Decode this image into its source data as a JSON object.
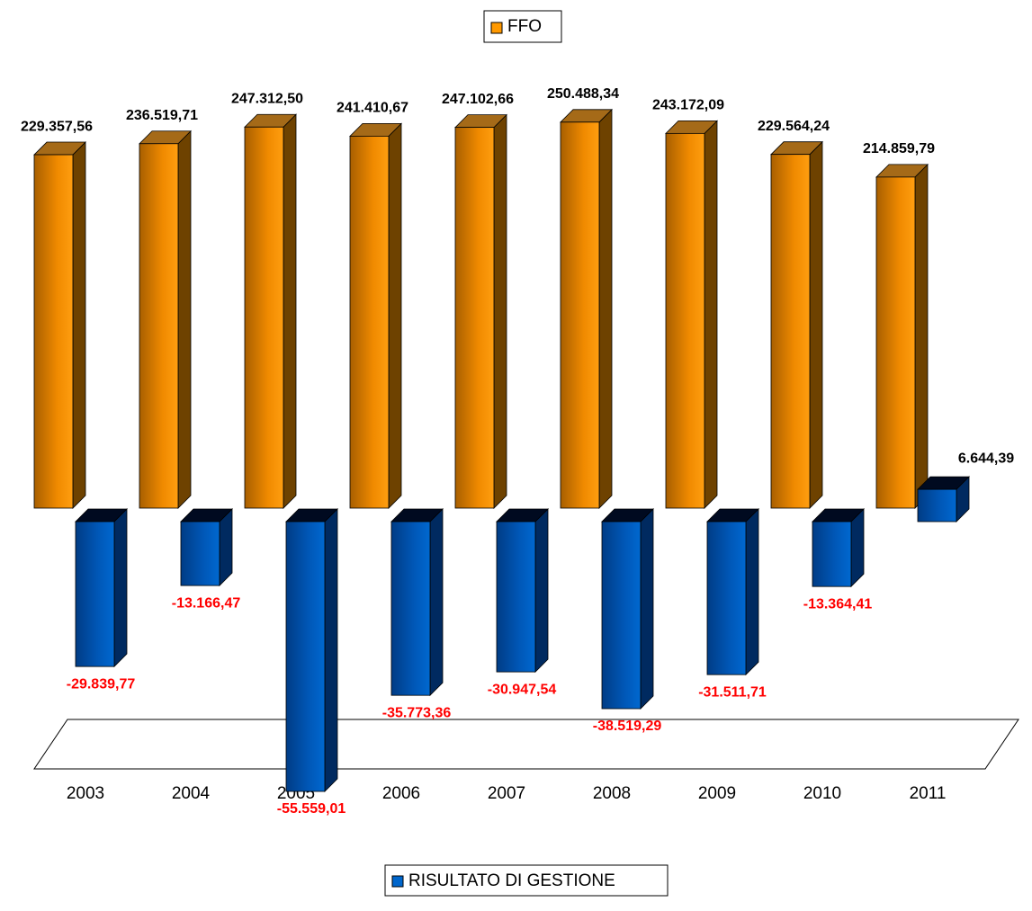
{
  "chart_data": {
    "type": "bar3d",
    "categories": [
      "2003",
      "2004",
      "2005",
      "2006",
      "2007",
      "2008",
      "2009",
      "2010",
      "2011"
    ],
    "series": [
      {
        "name": "FFO",
        "color": "#ff9900",
        "values": [
          229357.56,
          236519.71,
          247312.5,
          241410.67,
          247102.66,
          250488.34,
          243172.09,
          229564.24,
          214859.79
        ],
        "value_labels": [
          "229.357,56",
          "236.519,71",
          "247.312,50",
          "241.410,67",
          "247.102,66",
          "250.488,34",
          "243.172,09",
          "229.564,24",
          "214.859,79"
        ]
      },
      {
        "name": "RISULTATO DI GESTIONE",
        "color": "#0066cc",
        "axis": "y2",
        "values": [
          -29839.77,
          -13166.47,
          -55559.01,
          -35773.36,
          -30947.54,
          -38519.29,
          -31511.71,
          -13364.41,
          6644.39
        ],
        "value_labels": [
          "-29.839,77",
          "-13.166,47",
          "-55.559,01",
          "-35.773,36",
          "-30.947,54",
          "-38.519,29",
          "-31.511,71",
          "-13.364,41",
          "6.644,39"
        ]
      }
    ],
    "ylim": [
      0,
      300000
    ],
    "y2lim": [
      -60000,
      20000
    ]
  }
}
